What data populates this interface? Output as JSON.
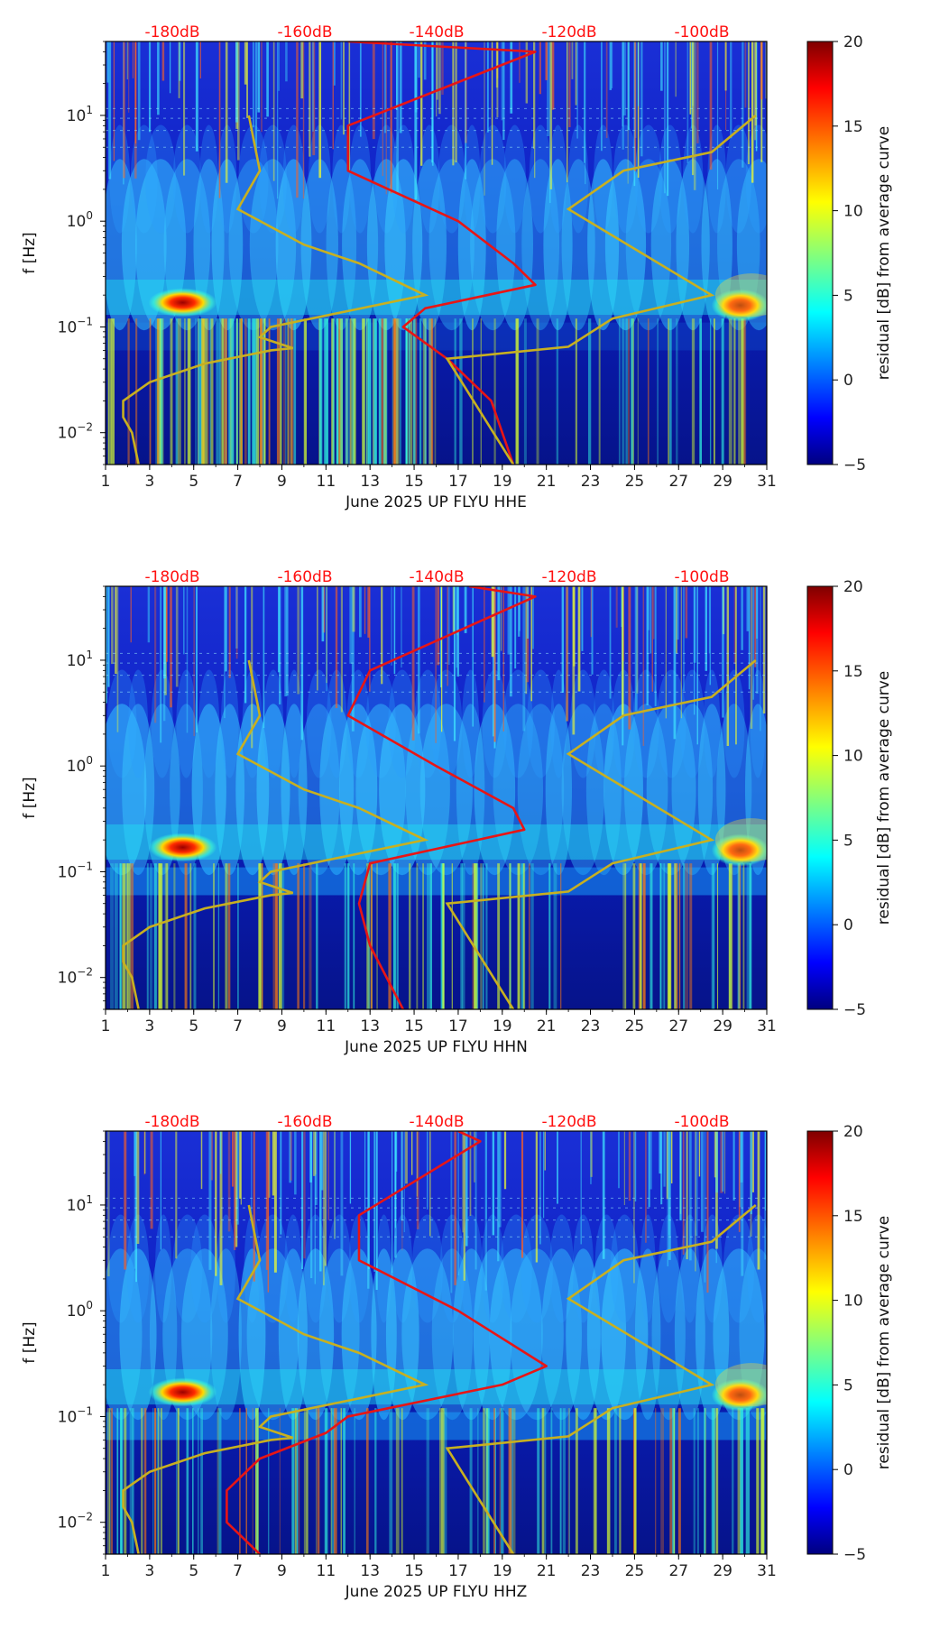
{
  "chart_data": [
    {
      "type": "heatmap",
      "title": "",
      "xlabel": "June 2025 UP FLYU  HHE",
      "ylabel": "f [Hz]",
      "xlim": [
        1,
        31
      ],
      "ylim": [
        0.005,
        50
      ],
      "yscale": "log",
      "x_ticks": [
        "1",
        "3",
        "5",
        "7",
        "9",
        "11",
        "13",
        "15",
        "17",
        "19",
        "21",
        "23",
        "25",
        "27",
        "29",
        "31"
      ],
      "y_ticks": [
        {
          "base": "10",
          "exp": "−2",
          "value": 0.01
        },
        {
          "base": "10",
          "exp": "−1",
          "value": 0.1
        },
        {
          "base": "10",
          "exp": "0",
          "value": 1
        },
        {
          "base": "10",
          "exp": "1",
          "value": 10
        }
      ],
      "top_axis_labels": [
        "-180dB",
        "-160dB",
        "-140dB",
        "-120dB",
        "-100dB"
      ],
      "colorbar": {
        "label": "residual [dB] from average curve",
        "min": -5,
        "max": 20,
        "ticks": [
          "−5",
          "0",
          "5",
          "10",
          "15",
          "20"
        ]
      },
      "series": [
        {
          "name": "average PSD curve",
          "color": "#e81515",
          "points": [
            [
              12.0,
              50
            ],
            [
              20.5,
              40
            ],
            [
              12.0,
              8
            ],
            [
              12.0,
              3
            ],
            [
              17.0,
              1
            ],
            [
              19.5,
              0.4
            ],
            [
              20.5,
              0.25
            ],
            [
              15.5,
              0.15
            ],
            [
              14.5,
              0.1
            ],
            [
              16.5,
              0.05
            ],
            [
              18.5,
              0.02
            ],
            [
              19.5,
              0.005
            ]
          ]
        },
        {
          "name": "noise model",
          "color": "#c8b020",
          "points": [
            [
              2.5,
              0.005
            ],
            [
              2.2,
              0.01
            ],
            [
              1.8,
              0.014
            ],
            [
              1.8,
              0.02
            ],
            [
              3,
              0.03
            ],
            [
              5.5,
              0.045
            ],
            [
              8.5,
              0.06
            ],
            [
              9.5,
              0.063
            ],
            [
              8.0,
              0.08
            ],
            [
              8.5,
              0.1
            ],
            [
              15.5,
              0.2
            ],
            [
              12.5,
              0.4
            ],
            [
              10,
              0.6
            ],
            [
              7,
              1.3
            ],
            [
              8,
              3
            ],
            [
              7.5,
              10
            ],
            [
              19.5,
              0.005
            ],
            [
              16.5,
              0.05
            ],
            [
              22,
              0.065
            ],
            [
              24,
              0.12
            ],
            [
              28.5,
              0.2
            ],
            [
              22,
              1.3
            ],
            [
              24.5,
              3
            ],
            [
              28.5,
              4.5
            ],
            [
              30.5,
              10
            ]
          ]
        }
      ]
    },
    {
      "type": "heatmap",
      "title": "",
      "xlabel": "June 2025 UP FLYU  HHN",
      "ylabel": "f [Hz]",
      "xlim": [
        1,
        31
      ],
      "ylim": [
        0.005,
        50
      ],
      "yscale": "log",
      "x_ticks": [
        "1",
        "3",
        "5",
        "7",
        "9",
        "11",
        "13",
        "15",
        "17",
        "19",
        "21",
        "23",
        "25",
        "27",
        "29",
        "31"
      ],
      "y_ticks": [
        {
          "base": "10",
          "exp": "−2",
          "value": 0.01
        },
        {
          "base": "10",
          "exp": "−1",
          "value": 0.1
        },
        {
          "base": "10",
          "exp": "0",
          "value": 1
        },
        {
          "base": "10",
          "exp": "1",
          "value": 10
        }
      ],
      "top_axis_labels": [
        "-180dB",
        "-160dB",
        "-140dB",
        "-120dB",
        "-100dB"
      ],
      "colorbar": {
        "label": "residual [dB] from average curve",
        "min": -5,
        "max": 20,
        "ticks": [
          "−5",
          "0",
          "5",
          "10",
          "15",
          "20"
        ]
      },
      "series": [
        {
          "name": "average PSD curve",
          "color": "#e81515",
          "points": [
            [
              17.5,
              50
            ],
            [
              20.5,
              40
            ],
            [
              13,
              8
            ],
            [
              12,
              3
            ],
            [
              16,
              1
            ],
            [
              19.5,
              0.4
            ],
            [
              20,
              0.25
            ],
            [
              13,
              0.12
            ],
            [
              12.5,
              0.05
            ],
            [
              13,
              0.02
            ],
            [
              14.5,
              0.005
            ]
          ]
        },
        {
          "name": "noise model",
          "color": "#c8b020",
          "points": [
            [
              2.5,
              0.005
            ],
            [
              2.2,
              0.01
            ],
            [
              1.8,
              0.014
            ],
            [
              1.8,
              0.02
            ],
            [
              3,
              0.03
            ],
            [
              5.5,
              0.045
            ],
            [
              8.5,
              0.06
            ],
            [
              9.5,
              0.063
            ],
            [
              8.0,
              0.08
            ],
            [
              8.5,
              0.1
            ],
            [
              15.5,
              0.2
            ],
            [
              12.5,
              0.4
            ],
            [
              10,
              0.6
            ],
            [
              7,
              1.3
            ],
            [
              8,
              3
            ],
            [
              7.5,
              10
            ],
            [
              19.5,
              0.005
            ],
            [
              16.5,
              0.05
            ],
            [
              22,
              0.065
            ],
            [
              24,
              0.12
            ],
            [
              28.5,
              0.2
            ],
            [
              22,
              1.3
            ],
            [
              24.5,
              3
            ],
            [
              28.5,
              4.5
            ],
            [
              30.5,
              10
            ]
          ]
        }
      ]
    },
    {
      "type": "heatmap",
      "title": "",
      "xlabel": "June 2025 UP FLYU  HHZ",
      "ylabel": "f [Hz]",
      "xlim": [
        1,
        31
      ],
      "ylim": [
        0.005,
        50
      ],
      "yscale": "log",
      "x_ticks": [
        "1",
        "3",
        "5",
        "7",
        "9",
        "11",
        "13",
        "15",
        "17",
        "19",
        "21",
        "23",
        "25",
        "27",
        "29",
        "31"
      ],
      "y_ticks": [
        {
          "base": "10",
          "exp": "−2",
          "value": 0.01
        },
        {
          "base": "10",
          "exp": "−1",
          "value": 0.1
        },
        {
          "base": "10",
          "exp": "0",
          "value": 1
        },
        {
          "base": "10",
          "exp": "1",
          "value": 10
        }
      ],
      "top_axis_labels": [
        "-180dB",
        "-160dB",
        "-140dB",
        "-120dB",
        "-100dB"
      ],
      "colorbar": {
        "label": "residual [dB] from average curve",
        "min": -5,
        "max": 20,
        "ticks": [
          "−5",
          "0",
          "5",
          "10",
          "15",
          "20"
        ]
      },
      "series": [
        {
          "name": "average PSD curve",
          "color": "#e81515",
          "points": [
            [
              17,
              50
            ],
            [
              18,
              40
            ],
            [
              12.5,
              8
            ],
            [
              12.5,
              3
            ],
            [
              17,
              1
            ],
            [
              21,
              0.3
            ],
            [
              19,
              0.2
            ],
            [
              12,
              0.1
            ],
            [
              11,
              0.07
            ],
            [
              8,
              0.04
            ],
            [
              6.5,
              0.02
            ],
            [
              6.5,
              0.01
            ],
            [
              8,
              0.005
            ]
          ]
        },
        {
          "name": "noise model",
          "color": "#c8b020",
          "points": [
            [
              2.5,
              0.005
            ],
            [
              2.2,
              0.01
            ],
            [
              1.8,
              0.014
            ],
            [
              1.8,
              0.02
            ],
            [
              3,
              0.03
            ],
            [
              5.5,
              0.045
            ],
            [
              8.5,
              0.06
            ],
            [
              9.5,
              0.063
            ],
            [
              8.0,
              0.08
            ],
            [
              8.5,
              0.1
            ],
            [
              15.5,
              0.2
            ],
            [
              12.5,
              0.4
            ],
            [
              10,
              0.6
            ],
            [
              7,
              1.3
            ],
            [
              8,
              3
            ],
            [
              7.5,
              10
            ],
            [
              19.5,
              0.005
            ],
            [
              16.5,
              0.05
            ],
            [
              22,
              0.065
            ],
            [
              24,
              0.12
            ],
            [
              28.5,
              0.2
            ],
            [
              22,
              1.3
            ],
            [
              24.5,
              3
            ],
            [
              28.5,
              4.5
            ],
            [
              30.5,
              10
            ]
          ]
        }
      ]
    }
  ]
}
